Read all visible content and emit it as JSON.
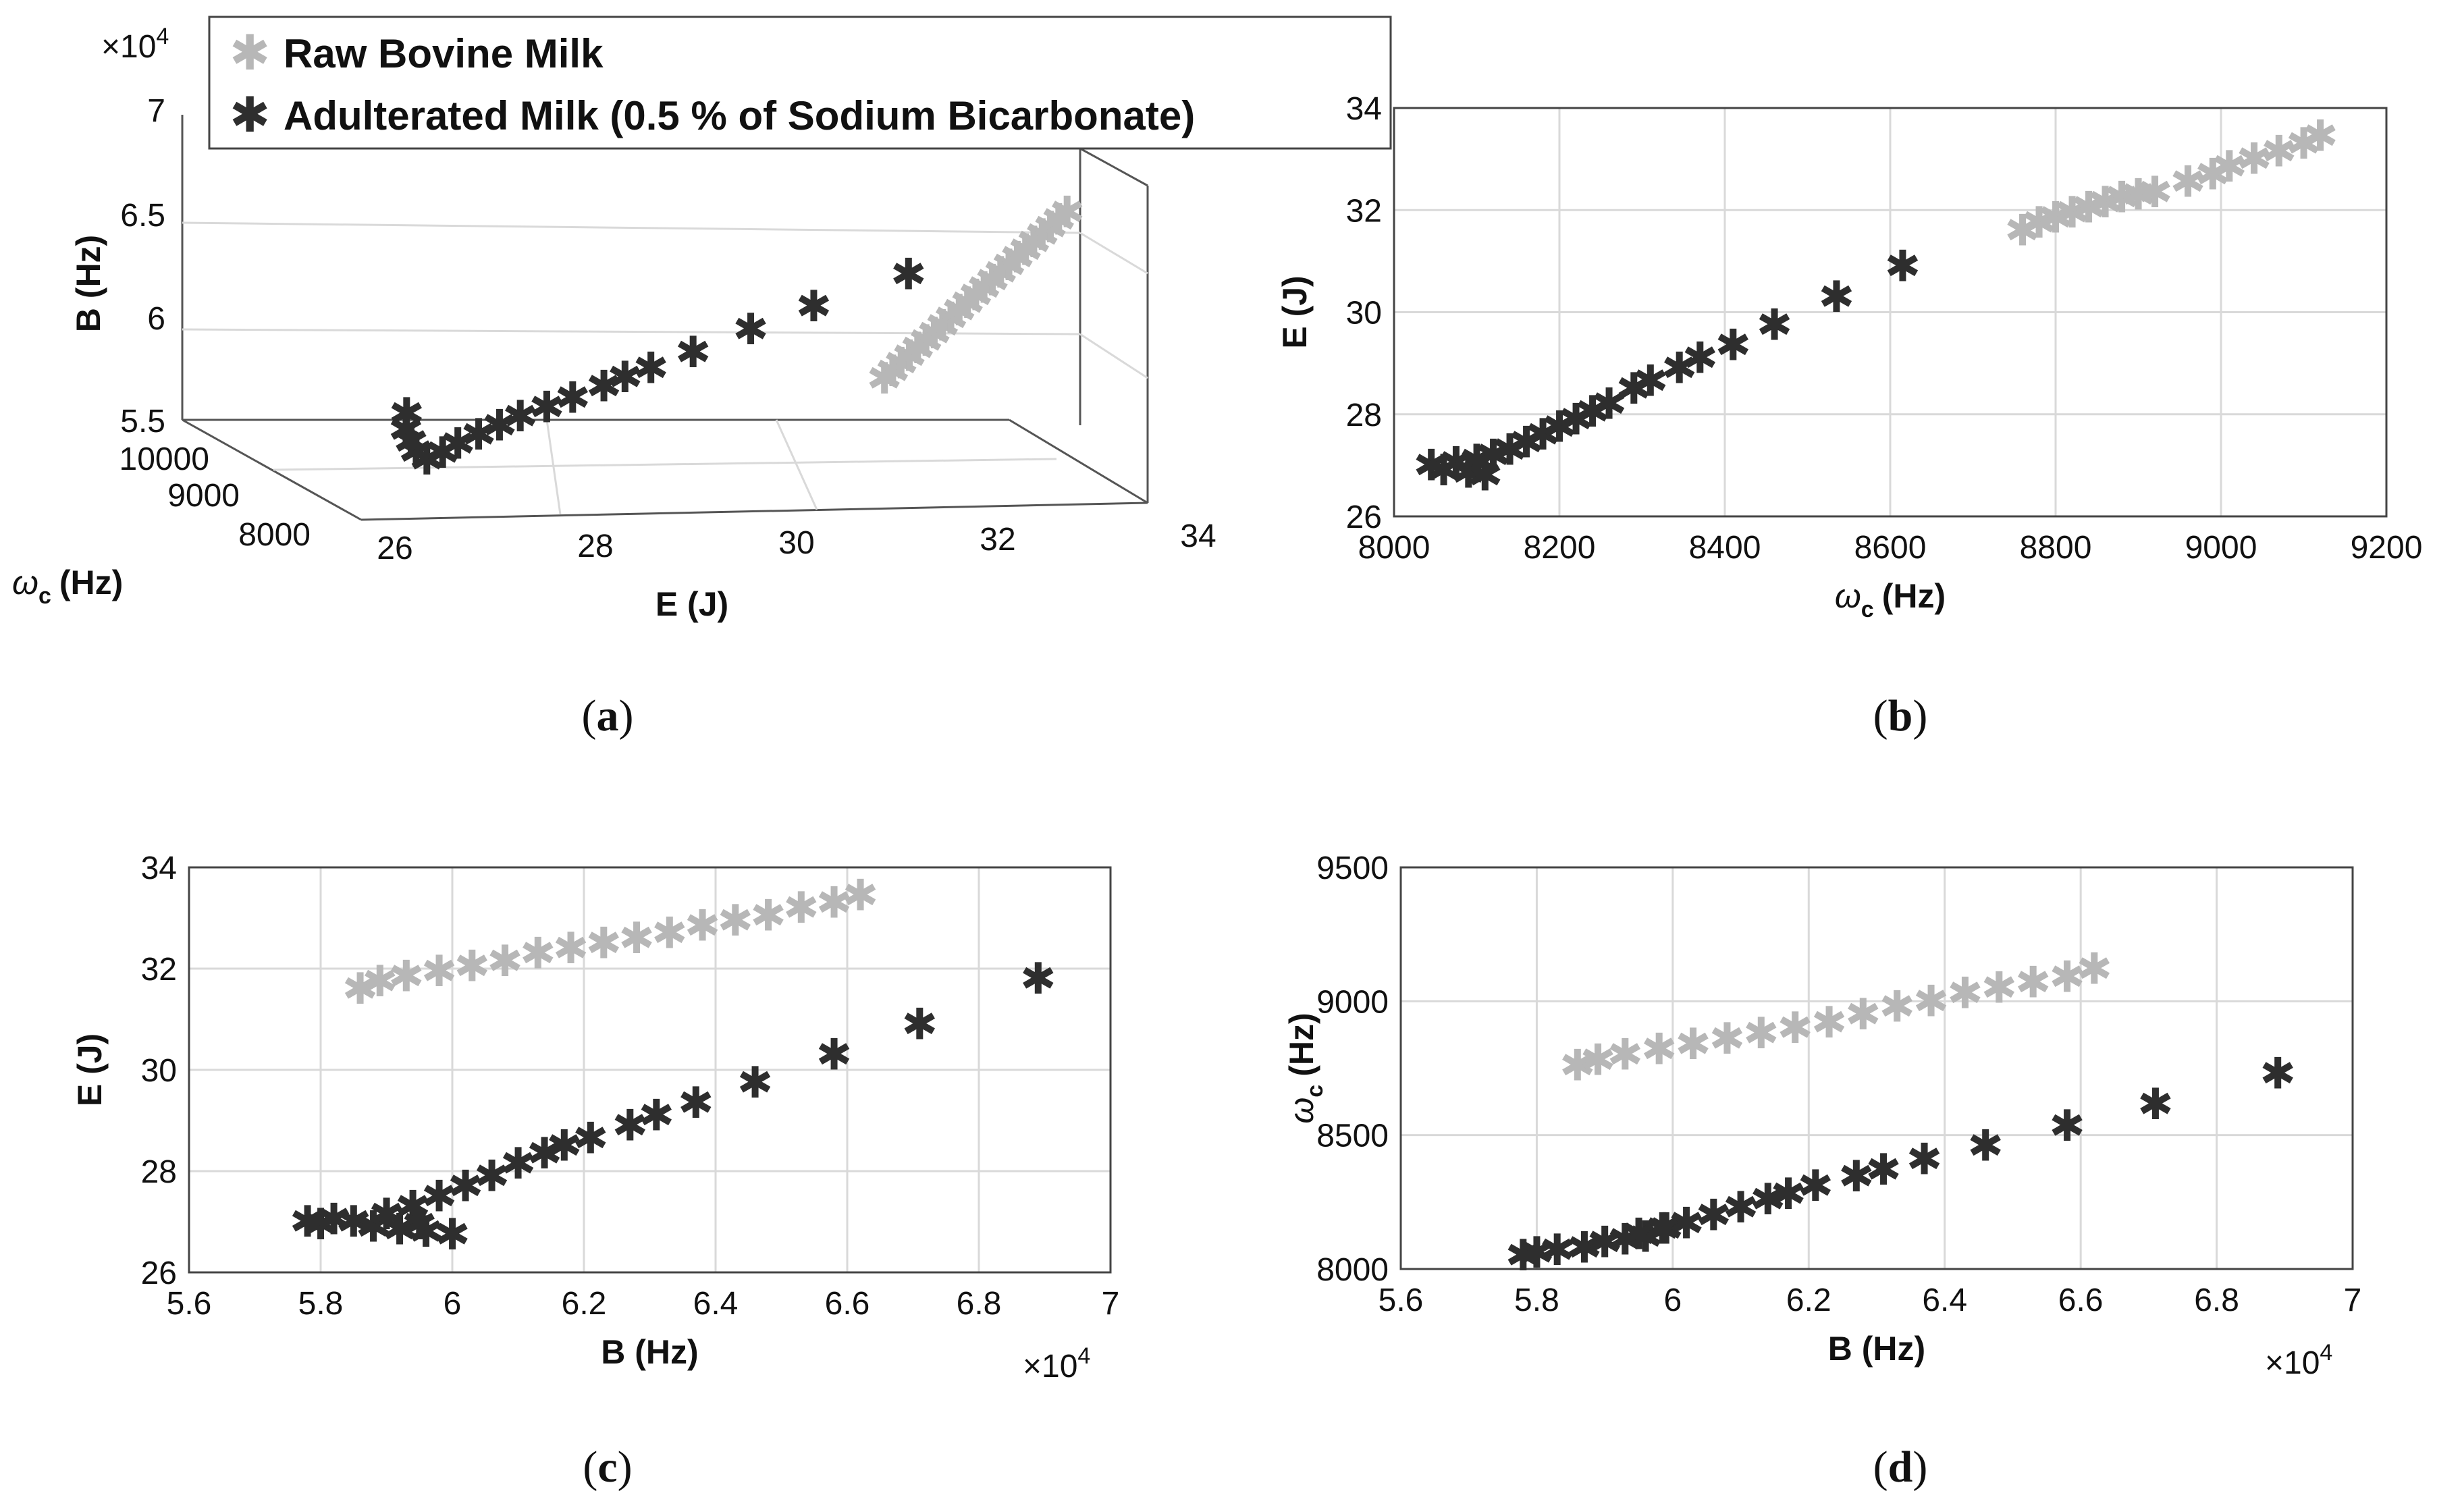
{
  "colors": {
    "raw": "#b7b7b7",
    "adulterated": "#2e2e2e",
    "grid": "#d9d9d9",
    "axis": "#555555"
  },
  "legend": {
    "raw_label": "Raw Bovine Milk",
    "adulterated_label": "Adulterated Milk (0.5 % of Sodium Bicarbonate)",
    "marker_glyph": "✱"
  },
  "exponent_label": "×10",
  "exponent_power": "4",
  "captions": {
    "open": "(",
    "close": ")",
    "a": "a",
    "b": "b",
    "c": "c",
    "d": "d"
  },
  "chart_data": [
    {
      "id": "a",
      "type": "scatter3d",
      "xlabel": "E (J)",
      "ylabel_symbol": "ω",
      "ylabel_sub": "c",
      "ylabel_unit": "(Hz)",
      "zlabel": "B (Hz)",
      "xlim": [
        26,
        34
      ],
      "ylim": [
        7500,
        10500
      ],
      "zlim": [
        55000,
        70000
      ],
      "xticks": [
        26,
        28,
        30,
        32,
        34
      ],
      "yticks": [
        8000,
        9000,
        10000
      ],
      "zticks": [
        5.5,
        6,
        6.5,
        7
      ],
      "zscale_exponent": 4,
      "legend_position": "top",
      "series": [
        {
          "name": "Raw Bovine Milk",
          "E_range": [
            31.6,
            33.4
          ],
          "omega_range": [
            8760,
            9120
          ],
          "B_range": [
            58600,
            66200
          ]
        },
        {
          "name": "Adulterated Milk (0.5 % of Sodium Bicarbonate)",
          "E_range": [
            26.8,
            31.8
          ],
          "omega_range": [
            8040,
            8730
          ],
          "B_range": [
            57700,
            68900
          ]
        }
      ]
    },
    {
      "id": "b",
      "type": "scatter",
      "xlabel_symbol": "ω",
      "xlabel_sub": "c",
      "xlabel_unit": "(Hz)",
      "ylabel": "E (J)",
      "xlim": [
        8000,
        9200
      ],
      "ylim": [
        26,
        34
      ],
      "xticks": [
        8000,
        8200,
        8400,
        8600,
        8800,
        9000,
        9200
      ],
      "yticks": [
        26,
        28,
        30,
        32,
        34
      ],
      "series": [
        {
          "name": "Raw Bovine Milk",
          "points": [
            [
              8760,
              31.6
            ],
            [
              8780,
              31.75
            ],
            [
              8800,
              31.85
            ],
            [
              8820,
              31.95
            ],
            [
              8840,
              32.05
            ],
            [
              8860,
              32.15
            ],
            [
              8880,
              32.25
            ],
            [
              8900,
              32.3
            ],
            [
              8920,
              32.35
            ],
            [
              8960,
              32.55
            ],
            [
              8990,
              32.7
            ],
            [
              9010,
              32.85
            ],
            [
              9040,
              33.0
            ],
            [
              9070,
              33.15
            ],
            [
              9100,
              33.3
            ],
            [
              9120,
              33.45
            ]
          ]
        },
        {
          "name": "Adulterated Milk (0.5 % of Sodium Bicarbonate)",
          "points": [
            [
              8045,
              27.0
            ],
            [
              8060,
              26.9
            ],
            [
              8075,
              27.05
            ],
            [
              8090,
              26.85
            ],
            [
              8100,
              27.1
            ],
            [
              8110,
              26.8
            ],
            [
              8120,
              27.2
            ],
            [
              8140,
              27.3
            ],
            [
              8160,
              27.45
            ],
            [
              8180,
              27.6
            ],
            [
              8200,
              27.75
            ],
            [
              8220,
              27.9
            ],
            [
              8240,
              28.05
            ],
            [
              8260,
              28.2
            ],
            [
              8290,
              28.5
            ],
            [
              8310,
              28.65
            ],
            [
              8345,
              28.9
            ],
            [
              8370,
              29.1
            ],
            [
              8410,
              29.35
            ],
            [
              8460,
              29.75
            ],
            [
              8535,
              30.3
            ],
            [
              8615,
              30.9
            ]
          ]
        }
      ]
    },
    {
      "id": "c",
      "type": "scatter",
      "xlabel": "B (Hz)",
      "ylabel": "E (J)",
      "xlim": [
        56000,
        70000
      ],
      "ylim": [
        26,
        34
      ],
      "xticks": [
        5.6,
        5.8,
        6,
        6.2,
        6.4,
        6.6,
        6.8,
        7
      ],
      "xscale_exponent": 4,
      "yticks": [
        26,
        28,
        30,
        32,
        34
      ],
      "series": [
        {
          "name": "Raw Bovine Milk",
          "points": [
            [
              58600,
              31.6
            ],
            [
              58900,
              31.75
            ],
            [
              59300,
              31.85
            ],
            [
              59800,
              31.95
            ],
            [
              60300,
              32.05
            ],
            [
              60800,
              32.15
            ],
            [
              61300,
              32.3
            ],
            [
              61800,
              32.4
            ],
            [
              62300,
              32.5
            ],
            [
              62800,
              32.6
            ],
            [
              63300,
              32.7
            ],
            [
              63800,
              32.85
            ],
            [
              64300,
              32.95
            ],
            [
              64800,
              33.05
            ],
            [
              65300,
              33.2
            ],
            [
              65800,
              33.3
            ],
            [
              66200,
              33.45
            ]
          ]
        },
        {
          "name": "Adulterated Milk (0.5 % of Sodium Bicarbonate)",
          "points": [
            [
              57800,
              27.0
            ],
            [
              58000,
              26.95
            ],
            [
              58200,
              27.05
            ],
            [
              58500,
              27.0
            ],
            [
              58800,
              26.9
            ],
            [
              59200,
              26.85
            ],
            [
              59600,
              26.8
            ],
            [
              60000,
              26.75
            ],
            [
              59000,
              27.15
            ],
            [
              59400,
              27.3
            ],
            [
              59800,
              27.5
            ],
            [
              60200,
              27.7
            ],
            [
              60600,
              27.9
            ],
            [
              61000,
              28.15
            ],
            [
              61400,
              28.35
            ],
            [
              61700,
              28.5
            ],
            [
              62100,
              28.65
            ],
            [
              62700,
              28.9
            ],
            [
              63100,
              29.1
            ],
            [
              63700,
              29.35
            ],
            [
              64600,
              29.75
            ],
            [
              65800,
              30.3
            ],
            [
              67100,
              30.9
            ],
            [
              68900,
              31.8
            ]
          ]
        }
      ]
    },
    {
      "id": "d",
      "type": "scatter",
      "xlabel": "B (Hz)",
      "ylabel_symbol": "ω",
      "ylabel_sub": "c",
      "ylabel_unit": "(Hz)",
      "xlim": [
        56000,
        70000
      ],
      "ylim": [
        8000,
        9500
      ],
      "xticks": [
        5.6,
        5.8,
        6,
        6.2,
        6.4,
        6.6,
        6.8,
        7
      ],
      "xscale_exponent": 4,
      "yticks": [
        8000,
        8500,
        9000,
        9500
      ],
      "series": [
        {
          "name": "Raw Bovine Milk",
          "points": [
            [
              58600,
              8760
            ],
            [
              58900,
              8780
            ],
            [
              59300,
              8800
            ],
            [
              59800,
              8820
            ],
            [
              60300,
              8840
            ],
            [
              60800,
              8860
            ],
            [
              61300,
              8880
            ],
            [
              61800,
              8900
            ],
            [
              62300,
              8920
            ],
            [
              62800,
              8950
            ],
            [
              63300,
              8980
            ],
            [
              63800,
              9000
            ],
            [
              64300,
              9030
            ],
            [
              64800,
              9050
            ],
            [
              65300,
              9070
            ],
            [
              65800,
              9090
            ],
            [
              66200,
              9120
            ]
          ]
        },
        {
          "name": "Adulterated Milk (0.5 % of Sodium Bicarbonate)",
          "points": [
            [
              57800,
              8050
            ],
            [
              58000,
              8060
            ],
            [
              58300,
              8070
            ],
            [
              58700,
              8080
            ],
            [
              59000,
              8100
            ],
            [
              59300,
              8110
            ],
            [
              59600,
              8120
            ],
            [
              59900,
              8150
            ],
            [
              59500,
              8130
            ],
            [
              60200,
              8170
            ],
            [
              60600,
              8200
            ],
            [
              61000,
              8230
            ],
            [
              61400,
              8260
            ],
            [
              61700,
              8280
            ],
            [
              62100,
              8310
            ],
            [
              62700,
              8345
            ],
            [
              63100,
              8370
            ],
            [
              63700,
              8410
            ],
            [
              64600,
              8460
            ],
            [
              65800,
              8535
            ],
            [
              67100,
              8615
            ],
            [
              68900,
              8730
            ]
          ]
        }
      ]
    }
  ]
}
